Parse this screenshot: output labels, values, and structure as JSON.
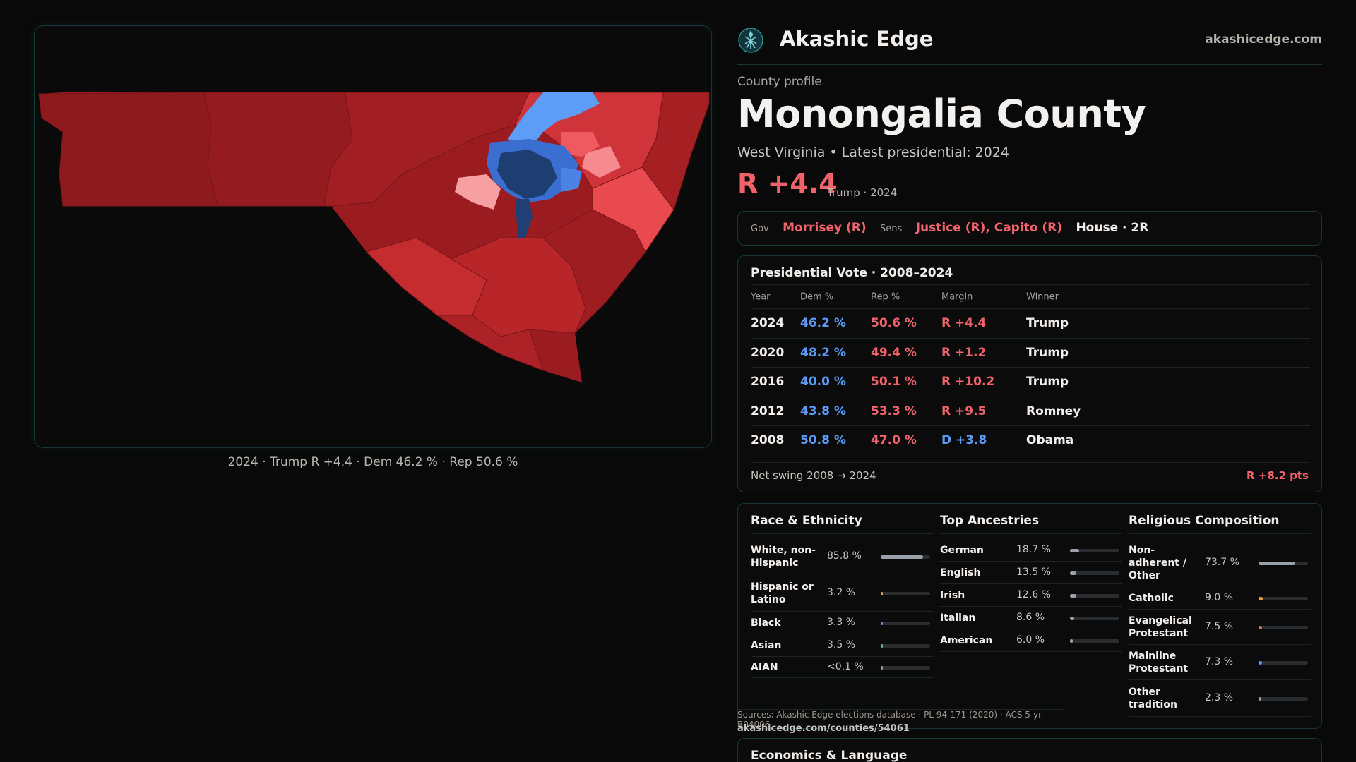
{
  "map": {
    "caption": "2024 · Trump R +4.4 · Dem 46.2 % · Rep 50.6 %"
  },
  "header": {
    "brand": "Akashic Edge",
    "site": "akashicedge.com"
  },
  "profile": {
    "kicker": "County profile",
    "title": "Monongalia County",
    "subtitle": "West Virginia • Latest presidential: 2024",
    "margin": "R +4.4",
    "margin_note": "Trump · 2024"
  },
  "officials": {
    "gov_key": "Gov",
    "gov": "Morrisey (R)",
    "sens_key": "Sens",
    "sens": "Justice (R), Capito (R)",
    "house": "House · 2R"
  },
  "presidential": {
    "title": "Presidential Vote · 2008–2024",
    "headers": {
      "year": "Year",
      "dem": "Dem %",
      "rep": "Rep %",
      "margin": "Margin",
      "winner": "Winner"
    },
    "rows": [
      {
        "year": "2024",
        "dem": "46.2 %",
        "rep": "50.6 %",
        "margin": "R +4.4",
        "winner": "Trump"
      },
      {
        "year": "2020",
        "dem": "48.2 %",
        "rep": "49.4 %",
        "margin": "R +1.2",
        "winner": "Trump"
      },
      {
        "year": "2016",
        "dem": "40.0 %",
        "rep": "50.1 %",
        "margin": "R +10.2",
        "winner": "Trump"
      },
      {
        "year": "2012",
        "dem": "43.8 %",
        "rep": "53.3 %",
        "margin": "R +9.5",
        "winner": "Romney"
      },
      {
        "year": "2008",
        "dem": "50.8 %",
        "rep": "47.0 %",
        "margin": "D +3.8",
        "winner": "Obama"
      }
    ],
    "swing_label": "Net swing 2008 → 2024",
    "swing_value": "R +8.2 pts"
  },
  "race": {
    "title": "Race & Ethnicity",
    "items": [
      {
        "label": "White, non-Hispanic",
        "value": "85.8 %",
        "pct": 0.858,
        "color": "#9aa1aa"
      },
      {
        "label": "Hispanic or Latino",
        "value": "3.2 %",
        "pct": 0.032,
        "color": "#e6a23c"
      },
      {
        "label": "Black",
        "value": "3.3 %",
        "pct": 0.033,
        "color": "#8a7dd8"
      },
      {
        "label": "Asian",
        "value": "3.5 %",
        "pct": 0.035,
        "color": "#4fc08d"
      },
      {
        "label": "AIAN",
        "value": "<0.1 %",
        "pct": 0.0,
        "color": "#9aa1aa"
      }
    ]
  },
  "ancestry": {
    "title": "Top Ancestries",
    "items": [
      {
        "label": "German",
        "value": "18.7 %",
        "pct": 0.187
      },
      {
        "label": "English",
        "value": "13.5 %",
        "pct": 0.135
      },
      {
        "label": "Irish",
        "value": "12.6 %",
        "pct": 0.126
      },
      {
        "label": "Italian",
        "value": "8.6 %",
        "pct": 0.086
      },
      {
        "label": "American",
        "value": "6.0 %",
        "pct": 0.06
      }
    ]
  },
  "religion": {
    "title": "Religious Composition",
    "items": [
      {
        "label": "Non-adherent / Other",
        "value": "73.7 %",
        "pct": 0.737,
        "color": "#9aa1aa"
      },
      {
        "label": "Catholic",
        "value": "9.0 %",
        "pct": 0.09,
        "color": "#e6a23c"
      },
      {
        "label": "Evangelical Protestant",
        "value": "7.5 %",
        "pct": 0.075,
        "color": "#f0636a"
      },
      {
        "label": "Mainline Protestant",
        "value": "7.3 %",
        "pct": 0.073,
        "color": "#5a9cf5"
      },
      {
        "label": "Other tradition",
        "value": "2.3 %",
        "pct": 0.023,
        "color": "#9aa1aa"
      }
    ]
  },
  "sources": {
    "text": "Sources: Akashic Edge elections database · PL 94-171 (2020) · ACS 5-yr B04006",
    "url": "akashicedge.com/counties/54061"
  },
  "economics": {
    "title": "Economics & Language"
  },
  "colors": {
    "rep": "#f0636a",
    "dem": "#5a9cf5",
    "accent_border": "#17363a"
  }
}
